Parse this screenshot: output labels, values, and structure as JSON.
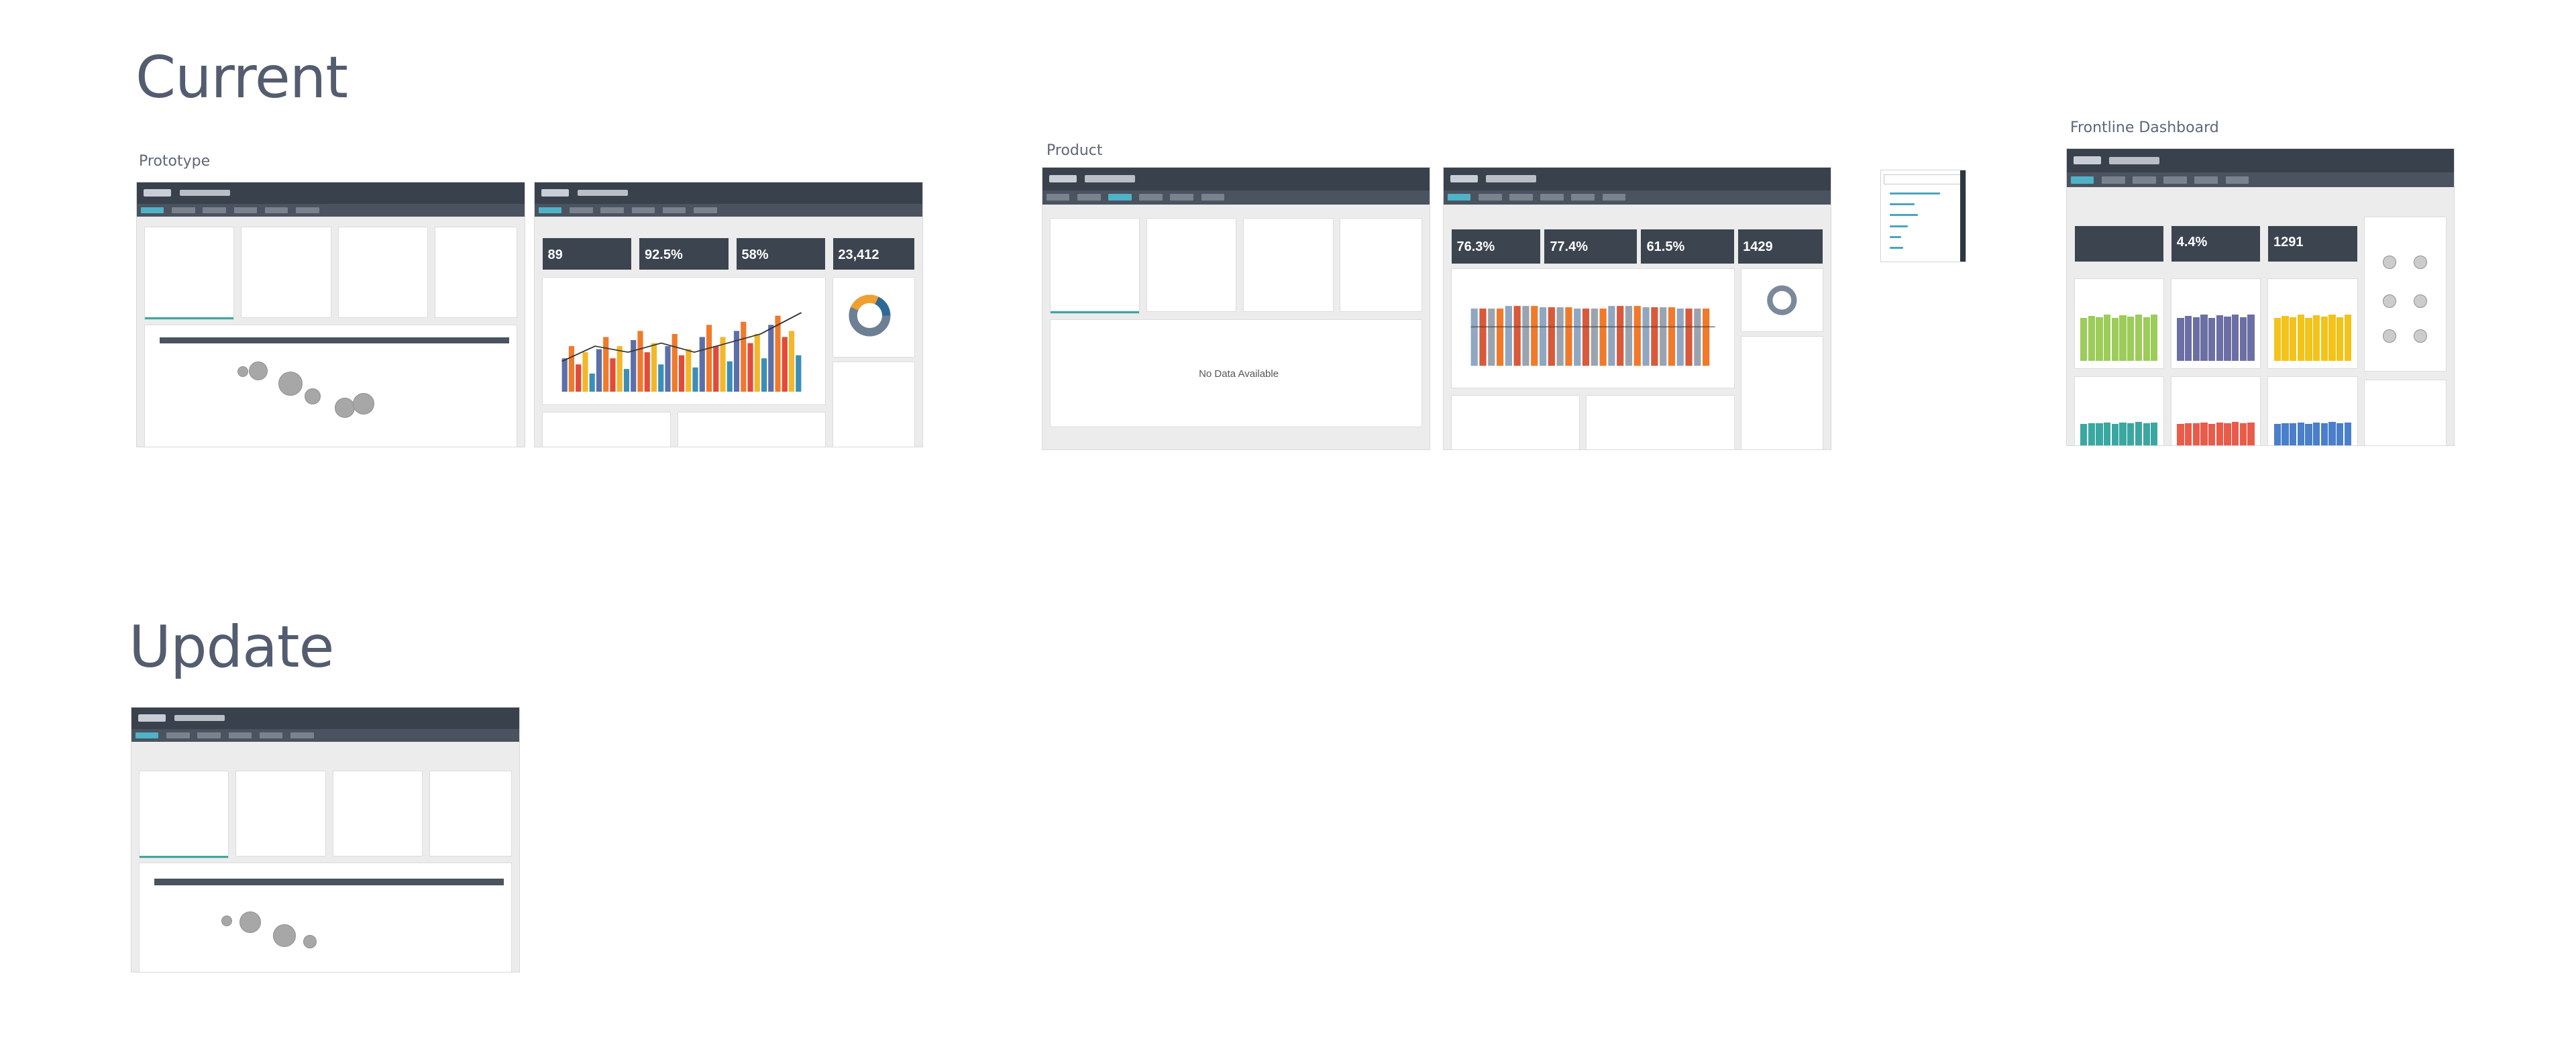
{
  "sections": {
    "current": "Current",
    "update": "Update"
  },
  "labels": {
    "prototype": "Prototype",
    "product": "Product",
    "frontline": "Frontline Dashboard"
  },
  "product_screen": {
    "no_data": "No Data Available"
  },
  "prototype_dashboard": {
    "kpis": [
      "89",
      "92.5%",
      "58%",
      "23,412"
    ]
  },
  "management_dashboard": {
    "kpis": [
      "76.3%",
      "77.4%",
      "61.5%",
      "1429"
    ]
  },
  "frontline_dashboard": {
    "kpis": [
      "4.4%",
      "1291"
    ]
  },
  "colors": {
    "header": "#39414d",
    "accent": "#4fb2c7",
    "orange": "#f07a2a",
    "green": "#9ccc5a",
    "purple": "#6b6fa3",
    "yellow": "#f2c31a",
    "teal": "#3aa8a0",
    "red": "#ea5b4a",
    "blue": "#4a7fc9"
  }
}
